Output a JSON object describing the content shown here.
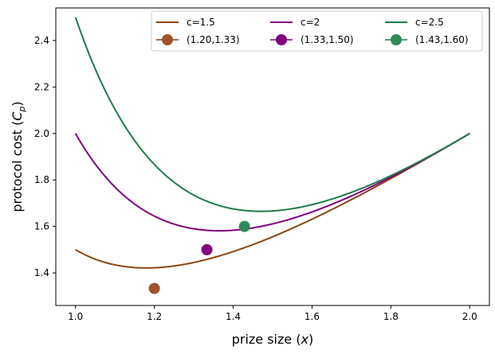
{
  "chart_data": {
    "type": "line",
    "title": "",
    "xlabel_main": "prize size (",
    "xlabel_var": "x",
    "xlabel_end": ")",
    "ylabel_main": "protocol cost (",
    "ylabel_var": "C",
    "ylabel_sub": "p",
    "ylabel_end": ")",
    "xlim": [
      0.95,
      2.05
    ],
    "ylim": [
      1.26,
      2.54
    ],
    "xticks": [
      1.0,
      1.2,
      1.4,
      1.6,
      1.8,
      2.0
    ],
    "xtick_labels": [
      "1.0",
      "1.2",
      "1.4",
      "1.6",
      "1.8",
      "2.0"
    ],
    "yticks": [
      1.4,
      1.6,
      1.8,
      2.0,
      2.2,
      2.4
    ],
    "ytick_labels": [
      "1.4",
      "1.6",
      "1.8",
      "2.0",
      "2.2",
      "2.4"
    ],
    "grid": false,
    "legend_placement": "top-right",
    "series": [
      {
        "name": "c=1.5",
        "c": 1.5,
        "color": "#8b4513",
        "x_range": [
          1.0,
          2.0
        ],
        "marker": {
          "name": "(1.20,1.33)",
          "x": 1.2,
          "y": 1.3333,
          "color": "#a0522d"
        }
      },
      {
        "name": "c=2",
        "c": 2.0,
        "color": "#800080",
        "x_range": [
          1.0,
          2.0
        ],
        "marker": {
          "name": "(1.33,1.50)",
          "x": 1.3333,
          "y": 1.5,
          "color": "#800080"
        }
      },
      {
        "name": "c=2.5",
        "c": 2.5,
        "color": "#1f7a4a",
        "x_range": [
          1.0,
          2.0
        ],
        "marker": {
          "name": "(1.43,1.60)",
          "x": 1.4286,
          "y": 1.6,
          "color": "#2e8b57"
        }
      }
    ]
  }
}
